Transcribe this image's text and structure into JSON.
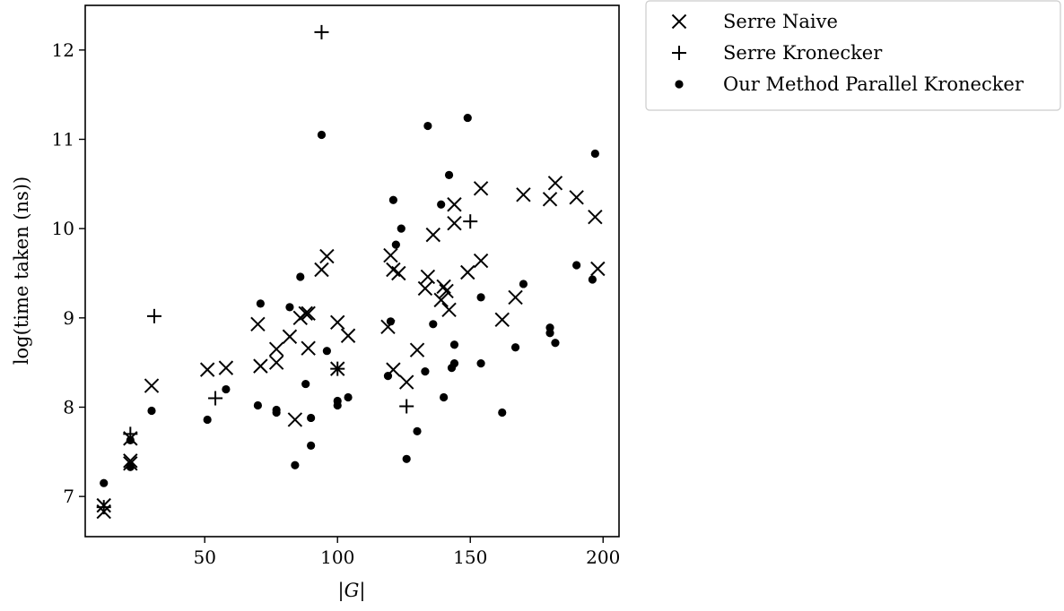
{
  "chart_data": {
    "type": "scatter",
    "xlabel": "|G|",
    "ylabel": "log(time taken (ns))",
    "xlim": [
      5,
      206
    ],
    "ylim": [
      6.55,
      12.5
    ],
    "xticks": [
      50,
      100,
      150,
      200
    ],
    "yticks": [
      7,
      8,
      9,
      10,
      11,
      12
    ],
    "legend_position": "outside-top-right",
    "series": [
      {
        "name": "Serre Naive",
        "marker": "x",
        "points": [
          [
            12,
            6.9
          ],
          [
            12,
            6.83
          ],
          [
            22,
            7.65
          ],
          [
            22,
            7.4
          ],
          [
            22,
            7.37
          ],
          [
            30,
            8.24
          ],
          [
            51,
            8.42
          ],
          [
            58,
            8.44
          ],
          [
            70,
            8.93
          ],
          [
            71,
            8.46
          ],
          [
            77,
            8.5
          ],
          [
            77,
            8.65
          ],
          [
            82,
            8.79
          ],
          [
            84,
            7.86
          ],
          [
            86,
            9.0
          ],
          [
            88,
            9.05
          ],
          [
            89,
            9.05
          ],
          [
            89,
            8.66
          ],
          [
            94,
            9.54
          ],
          [
            96,
            9.69
          ],
          [
            100,
            8.95
          ],
          [
            100,
            8.43
          ],
          [
            104,
            8.8
          ],
          [
            119,
            8.9
          ],
          [
            120,
            9.7
          ],
          [
            121,
            9.54
          ],
          [
            121,
            8.42
          ],
          [
            123,
            9.5
          ],
          [
            126,
            8.28
          ],
          [
            130,
            8.64
          ],
          [
            133,
            9.33
          ],
          [
            134,
            9.46
          ],
          [
            136,
            9.93
          ],
          [
            139,
            9.2
          ],
          [
            140,
            9.35
          ],
          [
            141,
            9.3
          ],
          [
            142,
            9.09
          ],
          [
            144,
            10.27
          ],
          [
            144,
            10.06
          ],
          [
            149,
            9.51
          ],
          [
            154,
            10.45
          ],
          [
            154,
            9.64
          ],
          [
            162,
            8.98
          ],
          [
            167,
            9.23
          ],
          [
            170,
            10.38
          ],
          [
            180,
            10.33
          ],
          [
            182,
            10.51
          ],
          [
            190,
            10.35
          ],
          [
            197,
            10.13
          ],
          [
            198,
            9.55
          ]
        ]
      },
      {
        "name": "Serre Kronecker",
        "marker": "+",
        "points": [
          [
            12,
            6.88
          ],
          [
            22,
            7.7
          ],
          [
            31,
            9.02
          ],
          [
            54,
            8.1
          ],
          [
            94,
            12.2
          ],
          [
            100,
            8.43
          ],
          [
            126,
            8.01
          ],
          [
            150,
            10.08
          ]
        ]
      },
      {
        "name": "Our Method Parallel Kronecker",
        "marker": "dot",
        "points": [
          [
            12,
            7.15
          ],
          [
            22,
            7.63
          ],
          [
            22,
            7.33
          ],
          [
            30,
            7.96
          ],
          [
            51,
            7.86
          ],
          [
            58,
            8.2
          ],
          [
            70,
            8.02
          ],
          [
            71,
            9.16
          ],
          [
            77,
            7.97
          ],
          [
            77,
            7.94
          ],
          [
            82,
            9.12
          ],
          [
            84,
            7.35
          ],
          [
            86,
            9.46
          ],
          [
            88,
            8.26
          ],
          [
            90,
            7.88
          ],
          [
            90,
            7.57
          ],
          [
            94,
            11.05
          ],
          [
            96,
            8.63
          ],
          [
            100,
            8.07
          ],
          [
            100,
            8.02
          ],
          [
            104,
            8.11
          ],
          [
            119,
            8.35
          ],
          [
            120,
            8.96
          ],
          [
            121,
            10.32
          ],
          [
            122,
            9.82
          ],
          [
            124,
            10.0
          ],
          [
            126,
            7.42
          ],
          [
            130,
            7.73
          ],
          [
            133,
            8.4
          ],
          [
            134,
            11.15
          ],
          [
            136,
            8.93
          ],
          [
            139,
            10.27
          ],
          [
            140,
            8.11
          ],
          [
            142,
            10.6
          ],
          [
            143,
            8.44
          ],
          [
            144,
            8.7
          ],
          [
            144,
            8.49
          ],
          [
            149,
            11.24
          ],
          [
            154,
            9.23
          ],
          [
            154,
            8.49
          ],
          [
            162,
            7.94
          ],
          [
            167,
            8.67
          ],
          [
            170,
            9.38
          ],
          [
            180,
            8.89
          ],
          [
            180,
            8.83
          ],
          [
            182,
            8.72
          ],
          [
            190,
            9.59
          ],
          [
            196,
            9.43
          ],
          [
            197,
            10.84
          ]
        ]
      }
    ]
  }
}
